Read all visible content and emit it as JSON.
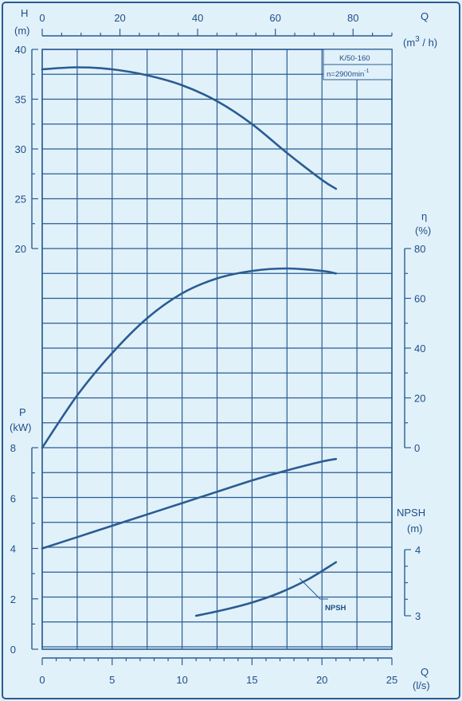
{
  "chart_data": {
    "type": "line",
    "model_label": "K/50-160",
    "speed_label_base": "n=2900min",
    "speed_label_exp": "-1",
    "colors": {
      "background": "#e1f1fa",
      "grid": "#2a5c92",
      "curve": "#2a5c92",
      "text": "#1e4e86"
    },
    "x_axis_bottom": {
      "label": "Q",
      "unit": "(l/s)",
      "range": [
        0,
        25
      ],
      "ticks": [
        "0",
        "5",
        "10",
        "15",
        "20",
        "25"
      ]
    },
    "x_axis_top": {
      "label": "Q",
      "unit_prefix": "(m",
      "unit_exp": "3",
      "unit_suffix": " / h)",
      "range": [
        0,
        90
      ],
      "ticks": [
        "0",
        "20",
        "40",
        "60",
        "80"
      ]
    },
    "head_axis": {
      "label": "H",
      "unit": "(m)",
      "range": [
        20,
        40
      ],
      "ticks": [
        "20",
        "25",
        "30",
        "35",
        "40"
      ]
    },
    "efficiency_axis": {
      "label": "η",
      "unit": "(%)",
      "range": [
        0,
        80
      ],
      "ticks": [
        "0",
        "20",
        "40",
        "60",
        "80"
      ]
    },
    "power_axis": {
      "label": "P",
      "unit": "(kW)",
      "range": [
        0,
        8
      ],
      "ticks": [
        "0",
        "2",
        "4",
        "6",
        "8"
      ]
    },
    "npsh_axis": {
      "label": "NPSH",
      "unit": "(m)",
      "range": [
        3,
        4
      ],
      "ticks": [
        "3",
        "4"
      ]
    },
    "series": [
      {
        "axis": "head",
        "x": [
          0,
          2.5,
          5,
          7.5,
          10,
          12.5,
          15,
          17.5,
          20,
          21
        ],
        "y": [
          38.0,
          38.2,
          38.0,
          37.4,
          36.4,
          34.8,
          32.5,
          29.6,
          26.9,
          26.0
        ]
      },
      {
        "axis": "efficiency",
        "x": [
          0,
          2.5,
          5,
          7.5,
          10,
          12.5,
          15,
          17.5,
          20,
          21
        ],
        "y": [
          0,
          21,
          38,
          52,
          62,
          68,
          71,
          72,
          71,
          70
        ]
      },
      {
        "axis": "power",
        "x": [
          0,
          2.5,
          5,
          7.5,
          10,
          12.5,
          15,
          17.5,
          20,
          21
        ],
        "y": [
          4.0,
          4.45,
          4.9,
          5.35,
          5.8,
          6.25,
          6.7,
          7.1,
          7.45,
          7.55
        ]
      },
      {
        "name": "NPSH",
        "axis": "npsh",
        "x": [
          11,
          13,
          15,
          17,
          19,
          21
        ],
        "y": [
          3.0,
          3.09,
          3.2,
          3.35,
          3.55,
          3.81
        ]
      }
    ],
    "annotation": "NPSH",
    "grid": true
  }
}
